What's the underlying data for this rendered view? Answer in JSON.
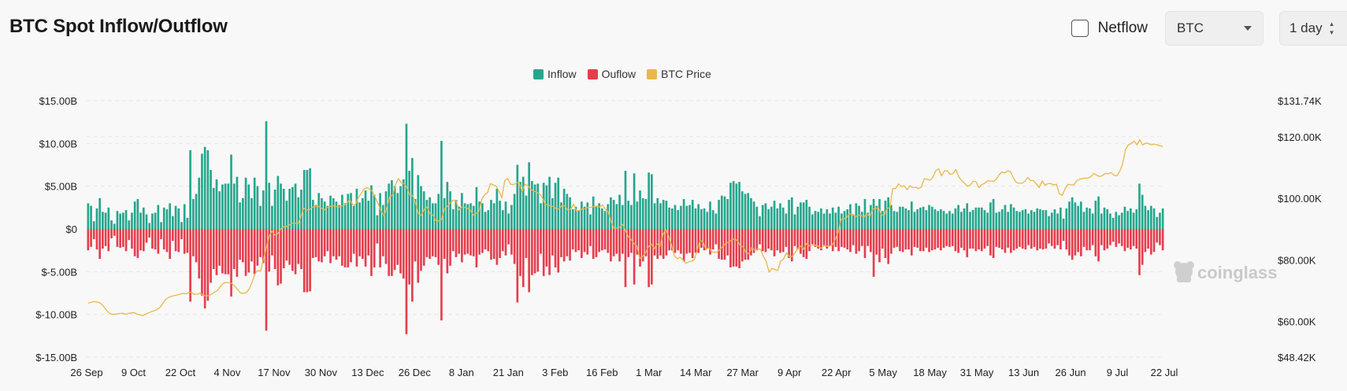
{
  "header": {
    "title": "BTC Spot Inflow/Outflow",
    "netflow_label": "Netflow",
    "coin_selected": "BTC",
    "period_selected": "1 day"
  },
  "legend": [
    {
      "label": "Inflow",
      "color": "#26a68d"
    },
    {
      "label": "Ouflow",
      "color": "#e53e4d"
    },
    {
      "label": "BTC Price",
      "color": "#e8b84a"
    }
  ],
  "watermark": "coinglass",
  "chart_data": {
    "type": "bar",
    "title": "BTC Spot Inflow/Outflow",
    "grid": true,
    "legend_position": "top-center",
    "y_left": {
      "ticks": [
        "$15.00B",
        "$10.00B",
        "$5.00B",
        "$0",
        "$-5.00B",
        "$-10.00B",
        "$-15.00B"
      ],
      "range": [
        -15,
        15
      ],
      "unit": "billion USD"
    },
    "y_right": {
      "ticks": [
        "$131.74K",
        "$120.00K",
        "$100.00K",
        "$80.00K",
        "$60.00K",
        "$48.42K"
      ],
      "range": [
        48.42,
        131.74
      ],
      "unit": "thousand USD"
    },
    "x_ticks": [
      "26 Sep",
      "9 Oct",
      "22 Oct",
      "4 Nov",
      "17 Nov",
      "30 Nov",
      "13 Dec",
      "26 Dec",
      "8 Jan",
      "21 Jan",
      "3 Feb",
      "16 Feb",
      "1 Mar",
      "14 Mar",
      "27 Mar",
      "9 Apr",
      "22 Apr",
      "5 May",
      "18 May",
      "31 May",
      "13 Jun",
      "26 Jun",
      "9 Jul",
      "22 Jul"
    ],
    "series": [
      {
        "name": "Inflow",
        "color": "#26a68d",
        "values": [
          3.0,
          2.7,
          0.9,
          2.4,
          3.6,
          2.0,
          1.9,
          2.5,
          1.0,
          0.6,
          2.1,
          1.8,
          1.9,
          2.2,
          1.0,
          1.9,
          3.2,
          3.5,
          1.9,
          2.5,
          1.7,
          0.7,
          1.8,
          1.9,
          2.8,
          0.8,
          2.5,
          2.3,
          3.0,
          1.5,
          2.7,
          2.4,
          0.8,
          2.9,
          1.3,
          9.2,
          3.5,
          4.1,
          6.0,
          8.8,
          9.6,
          9.2,
          6.9,
          4.8,
          5.8,
          4.4,
          5.2,
          5.3,
          5.3,
          8.7,
          5.3,
          6.1,
          3.1,
          3.6,
          6.0,
          5.2,
          3.6,
          6.0,
          5.0,
          2.7,
          4.5,
          12.6,
          5.4,
          2.7,
          4.6,
          6.2,
          5.3,
          4.7,
          3.3,
          4.7,
          4.9,
          5.3,
          3.7,
          4.6,
          6.9,
          6.9,
          7.1,
          3.4,
          2.8,
          4.2,
          3.6,
          3.2,
          2.7,
          3.9,
          3.6,
          3.2,
          2.8,
          4.0,
          3.0,
          4.1,
          4.2,
          2.7,
          4.7,
          3.1,
          3.6,
          4.5,
          3.3,
          5.1,
          4.0,
          1.6,
          4.2,
          2.8,
          4.4,
          5.3,
          5.7,
          5.0,
          4.2,
          5.0,
          5.8,
          12.3,
          6.8,
          8.3,
          3.5,
          6.3,
          5.0,
          4.4,
          3.4,
          3.7,
          3.0,
          3.0,
          4.1,
          10.3,
          3.6,
          5.5,
          4.4,
          2.3,
          3.4,
          2.6,
          4.2,
          3.0,
          2.9,
          3.0,
          2.7,
          4.9,
          3.2,
          3.0,
          2.0,
          2.2,
          3.4,
          3.0,
          4.7,
          3.3,
          2.2,
          3.2,
          1.8,
          2.8,
          4.1,
          7.5,
          5.5,
          6.1,
          3.9,
          7.8,
          5.6,
          5.2,
          5.3,
          3.0,
          5.4,
          5.1,
          6.1,
          3.6,
          5.4,
          6.0,
          3.1,
          4.7,
          4.1,
          3.7,
          2.3,
          2.6,
          2.2,
          3.2,
          2.6,
          3.1,
          1.7,
          3.8,
          2.6,
          3.0,
          2.4,
          2.1,
          2.9,
          3.7,
          3.4,
          2.9,
          4.0,
          2.8,
          6.8,
          3.3,
          2.8,
          6.5,
          3.2,
          4.5,
          3.6,
          3.5,
          6.6,
          6.4,
          3.0,
          3.6,
          3.0,
          3.4,
          3.3,
          2.5,
          2.4,
          2.8,
          2.2,
          2.7,
          3.5,
          2.7,
          2.8,
          3.4,
          2.4,
          2.9,
          2.3,
          2.4,
          2.0,
          3.2,
          2.2,
          1.8,
          3.4,
          3.9,
          3.8,
          3.5,
          5.4,
          5.6,
          5.3,
          5.5,
          4.4,
          4.1,
          4.2,
          3.6,
          3.2,
          2.6,
          1.5,
          2.8,
          3.0,
          2.3,
          2.6,
          3.3,
          2.4,
          3.0,
          2.5,
          1.8,
          3.4,
          3.7,
          1.7,
          2.6,
          3.1,
          3.1,
          3.4,
          2.6,
          1.7,
          2.1,
          2.0,
          2.4,
          1.8,
          2.3,
          1.8,
          2.5,
          1.9,
          2.6,
          1.8,
          2.1,
          2.3,
          2.9,
          1.7,
          3.0,
          2.7,
          2.0,
          3.5,
          1.9,
          2.8,
          3.5,
          2.7,
          3.5,
          2.1,
          3.3,
          3.7,
          2.8,
          2.1,
          2.0,
          2.6,
          2.6,
          2.4,
          2.2,
          3.2,
          2.0,
          2.3,
          2.5,
          2.6,
          2.2,
          2.8,
          2.6,
          2.3,
          2.1,
          2.3,
          2.1,
          1.8,
          2.1,
          1.8,
          2.4,
          2.8,
          2.0,
          2.4,
          3.0,
          2.0,
          2.2,
          2.5,
          2.5,
          2.5,
          2.2,
          1.9,
          3.1,
          3.5,
          1.9,
          2.0,
          2.3,
          2.8,
          2.0,
          2.9,
          2.5,
          2.1,
          2.0,
          2.2,
          2.3,
          1.8,
          2.2,
          2.0,
          2.4,
          2.3,
          2.2,
          2.2,
          1.5,
          1.9,
          2.3,
          1.8,
          2.5,
          1.2,
          2.4,
          3.2,
          3.7,
          3.1,
          2.7,
          3.2,
          2.0,
          2.5,
          2.4,
          1.8,
          3.3,
          3.8,
          1.8,
          2.5,
          2.3,
          1.8,
          1.3,
          2.0,
          1.6,
          1.9,
          2.6,
          2.1,
          2.4,
          1.9,
          2.3,
          5.3,
          4.0,
          2.7,
          2.2,
          2.7,
          2.4,
          1.4,
          1.9,
          2.4
        ]
      },
      {
        "name": "Ouflow",
        "color": "#e53e4d",
        "values": [
          -2.5,
          -2.1,
          -1.2,
          -2.4,
          -3.5,
          -2.3,
          -2.0,
          -2.6,
          -1.1,
          -0.8,
          -2.1,
          -2.2,
          -2.1,
          -2.6,
          -1.3,
          -2.3,
          -3.2,
          -3.4,
          -2.5,
          -2.6,
          -1.6,
          -1.0,
          -2.3,
          -2.4,
          -2.9,
          -1.2,
          -2.4,
          -2.7,
          -3.5,
          -1.4,
          -2.6,
          -2.7,
          -1.2,
          -2.9,
          -2.8,
          -8.5,
          -3.2,
          -3.9,
          -5.8,
          -7.8,
          -9.3,
          -8.4,
          -6.3,
          -4.7,
          -5.4,
          -4.3,
          -5.2,
          -5.3,
          -5.3,
          -7.9,
          -4.7,
          -5.6,
          -3.6,
          -3.9,
          -5.5,
          -5.1,
          -3.8,
          -5.3,
          -4.3,
          -3.3,
          -4.0,
          -11.9,
          -5.0,
          -3.1,
          -4.7,
          -6.6,
          -6.4,
          -4.6,
          -3.7,
          -4.2,
          -4.9,
          -5.3,
          -4.1,
          -4.7,
          -7.4,
          -7.4,
          -7.3,
          -3.4,
          -3.3,
          -3.8,
          -3.9,
          -3.2,
          -2.6,
          -4.0,
          -3.2,
          -3.6,
          -3.2,
          -4.3,
          -4.5,
          -4.5,
          -3.9,
          -2.9,
          -4.4,
          -3.2,
          -3.5,
          -4.4,
          -3.1,
          -5.5,
          -4.5,
          -1.7,
          -4.5,
          -3.2,
          -4.1,
          -5.5,
          -5.5,
          -4.8,
          -4.2,
          -5.2,
          -5.8,
          -12.3,
          -6.5,
          -8.5,
          -3.8,
          -6.3,
          -4.9,
          -4.3,
          -3.3,
          -3.5,
          -3.2,
          -3.3,
          -4.2,
          -10.7,
          -3.5,
          -5.2,
          -4.3,
          -2.6,
          -3.3,
          -2.9,
          -3.9,
          -3.0,
          -2.9,
          -3.1,
          -3.2,
          -4.5,
          -3.0,
          -2.8,
          -2.4,
          -2.6,
          -3.6,
          -3.5,
          -4.2,
          -3.4,
          -2.6,
          -3.1,
          -1.8,
          -3.0,
          -4.1,
          -8.6,
          -5.5,
          -6.8,
          -3.4,
          -7.4,
          -5.4,
          -5.2,
          -5.0,
          -2.9,
          -5.5,
          -4.4,
          -5.4,
          -3.1,
          -4.5,
          -5.1,
          -3.3,
          -3.8,
          -3.2,
          -3.7,
          -2.4,
          -2.7,
          -2.5,
          -3.4,
          -2.7,
          -3.0,
          -2.0,
          -3.5,
          -3.3,
          -2.7,
          -2.5,
          -2.4,
          -2.8,
          -3.8,
          -3.2,
          -2.9,
          -3.8,
          -2.9,
          -6.8,
          -3.3,
          -2.8,
          -6.5,
          -3.0,
          -4.4,
          -3.8,
          -3.2,
          -6.8,
          -6.5,
          -3.1,
          -3.5,
          -3.1,
          -3.5,
          -3.1,
          -2.5,
          -2.5,
          -2.8,
          -2.5,
          -2.9,
          -3.8,
          -2.9,
          -2.8,
          -3.4,
          -2.8,
          -2.8,
          -2.2,
          -2.5,
          -2.3,
          -3.0,
          -2.4,
          -1.8,
          -3.5,
          -3.6,
          -3.6,
          -3.1,
          -4.5,
          -4.4,
          -4.4,
          -4.6,
          -3.8,
          -3.6,
          -3.6,
          -3.1,
          -2.8,
          -2.5,
          -1.8,
          -2.6,
          -2.7,
          -2.3,
          -2.5,
          -3.2,
          -2.5,
          -2.8,
          -2.7,
          -2.1,
          -3.4,
          -3.8,
          -2.0,
          -2.4,
          -2.9,
          -3.3,
          -3.5,
          -2.6,
          -1.8,
          -2.1,
          -2.3,
          -2.5,
          -1.9,
          -2.3,
          -2.0,
          -2.6,
          -2.1,
          -2.6,
          -2.1,
          -2.2,
          -2.4,
          -2.7,
          -1.9,
          -2.9,
          -2.6,
          -2.0,
          -3.4,
          -2.0,
          -2.7,
          -5.6,
          -3.0,
          -3.9,
          -2.3,
          -3.4,
          -4.1,
          -2.9,
          -2.2,
          -2.1,
          -2.6,
          -2.7,
          -2.4,
          -2.4,
          -3.1,
          -2.1,
          -2.2,
          -2.6,
          -2.6,
          -2.2,
          -2.7,
          -2.5,
          -2.4,
          -2.2,
          -2.5,
          -2.2,
          -2.0,
          -2.1,
          -2.0,
          -2.6,
          -2.8,
          -2.2,
          -2.5,
          -3.3,
          -2.3,
          -2.3,
          -2.6,
          -2.4,
          -2.6,
          -2.3,
          -2.0,
          -3.1,
          -3.4,
          -2.1,
          -2.2,
          -2.4,
          -2.8,
          -2.2,
          -2.8,
          -2.5,
          -2.3,
          -2.1,
          -2.3,
          -2.4,
          -1.9,
          -2.3,
          -2.1,
          -2.5,
          -2.3,
          -2.4,
          -2.3,
          -1.7,
          -2.0,
          -2.3,
          -1.9,
          -2.4,
          -1.4,
          -2.4,
          -3.1,
          -3.6,
          -3.1,
          -2.7,
          -3.2,
          -2.1,
          -2.5,
          -2.5,
          -1.9,
          -3.2,
          -3.8,
          -1.9,
          -2.5,
          -2.3,
          -1.9,
          -1.5,
          -2.1,
          -1.7,
          -2.0,
          -2.6,
          -2.2,
          -2.4,
          -2.0,
          -2.3,
          -5.4,
          -4.2,
          -2.7,
          -2.3,
          -3.0,
          -2.7,
          -1.6,
          -1.9,
          -2.5
        ]
      },
      {
        "name": "BTC Price",
        "color": "#e8b84a",
        "axis": "right",
        "values": [
          66.0,
          66.2,
          66.5,
          66.4,
          66.1,
          65.4,
          64.2,
          63.0,
          62.4,
          62.3,
          62.5,
          62.6,
          62.7,
          62.4,
          62.6,
          62.8,
          62.9,
          62.4,
          62.2,
          61.9,
          62.4,
          62.8,
          63.2,
          63.5,
          63.9,
          64.6,
          65.9,
          67.2,
          67.8,
          68.2,
          68.4,
          68.6,
          68.9,
          69.2,
          69.0,
          69.4,
          69.5,
          68.8,
          68.9,
          69.2,
          68.7,
          68.3,
          68.4,
          68.9,
          69.5,
          70.1,
          71.3,
          72.4,
          72.7,
          72.6,
          72.4,
          71.5,
          70.4,
          69.3,
          69.2,
          69.4,
          70.5,
          72.6,
          75.4,
          76.6,
          76.3,
          80.2,
          84.0,
          87.6,
          89.4,
          88.1,
          88.5,
          90.0,
          90.8,
          90.8,
          91.3,
          92.0,
          92.0,
          91.7,
          94.0,
          96.8,
          96.3,
          96.3,
          97.1,
          97.4,
          97.5,
          97.0,
          96.2,
          96.9,
          97.3,
          97.6,
          97.5,
          97.1,
          97.5,
          97.7,
          98.4,
          99.5,
          98.1,
          97.8,
          100.2,
          101.5,
          103.0,
          103.5,
          103.0,
          102.2,
          100.2,
          98.1,
          95.9,
          94.2,
          97.2,
          100.7,
          101.0,
          104.5,
          106.5,
          105.0,
          104.8,
          103.4,
          101.0,
          100.9,
          98.3,
          94.9,
          94.5,
          96.5,
          97.2,
          95.0,
          94.6,
          92.8,
          92.7,
          93.2,
          96.6,
          97.4,
          98.5,
          99.4,
          99.3,
          96.2,
          97.2,
          97.1,
          96.8,
          96.2,
          94.6,
          95.1,
          95.8,
          99.7,
          101.2,
          101.8,
          104.8,
          104.4,
          104.0,
          102.3,
          100.2,
          105.8,
          106.5,
          104.6,
          104.5,
          104.9,
          105.3,
          102.2,
          104.6,
          104.2,
          103.0,
          102.4,
          102.1,
          101.5,
          100.4,
          98.2,
          97.8,
          97.6,
          97.3,
          96.6,
          96.6,
          97.8,
          97.5,
          96.1,
          96.6,
          98.1,
          95.8,
          96.1,
          96.6,
          96.6,
          97.1,
          97.1,
          97.4,
          97.5,
          97.2,
          97.9,
          96.5,
          95.6,
          92.4,
          90.3,
          90.3,
          90.6,
          91.6,
          89.5,
          87.6,
          86.6,
          85.3,
          84.5,
          80.5,
          81.1,
          82.4,
          84.3,
          85.2,
          83.6,
          85.3,
          84.4,
          88.2,
          89.9,
          87.8,
          85.0,
          81.4,
          80.4,
          80.9,
          80.0,
          78.9,
          79.4,
          79.6,
          80.1,
          83.3,
          86.4,
          85.8,
          83.4,
          84.0,
          82.7,
          82.5,
          82.6,
          83.6,
          84.5,
          85.5,
          85.8,
          86.5,
          86.9,
          86.2,
          84.7,
          84.2,
          82.3,
          82.1,
          84.1,
          83.1,
          83.6,
          83.5,
          81.2,
          79.4,
          76.0,
          77.3,
          76.9,
          76.6,
          79.6,
          80.3,
          82.3,
          81.2,
          81.1,
          82.3,
          83.8,
          84.5,
          83.5,
          85.4,
          84.6,
          84.7,
          84.8,
          84.6,
          83.8,
          84.6,
          84.5,
          84.5,
          84.9,
          86.7,
          88.9,
          93.2,
          93.4,
          93.8,
          95.0,
          94.8,
          94.0,
          94.6,
          94.5,
          93.9,
          95.1,
          94.1,
          96.5,
          96.7,
          97.0,
          94.8,
          94.3,
          96.7,
          97.0,
          103.2,
          103.2,
          104.7,
          103.8,
          104.1,
          102.8,
          104.1,
          103.5,
          103.6,
          103.2,
          103.7,
          106.4,
          106.2,
          105.9,
          106.9,
          109.0,
          109.6,
          107.3,
          108.9,
          109.0,
          107.8,
          108.1,
          109.4,
          107.0,
          105.8,
          104.9,
          103.9,
          104.3,
          105.6,
          105.4,
          103.5,
          104.5,
          104.9,
          105.7,
          105.7,
          105.5,
          106.2,
          107.6,
          108.6,
          108.3,
          109.0,
          108.6,
          106.7,
          105.2,
          104.9,
          104.9,
          105.6,
          106.8,
          105.8,
          105.8,
          104.7,
          103.5,
          105.7,
          104.3,
          104.8,
          104.8,
          104.4,
          104.6,
          101.5,
          101.0,
          103.2,
          104.6,
          104.4,
          104.4,
          105.7,
          106.2,
          106.4,
          106.6,
          106.6,
          107.1,
          108.1,
          107.5,
          107.1,
          107.4,
          108.1,
          108.0,
          108.4,
          107.5,
          107.3,
          108.8,
          111.2,
          115.9,
          117.4,
          117.8,
          118.6,
          117.4,
          119.1,
          117.3,
          118.0,
          117.8,
          117.4,
          117.6,
          117.4,
          117.1,
          116.9
        ]
      }
    ]
  }
}
